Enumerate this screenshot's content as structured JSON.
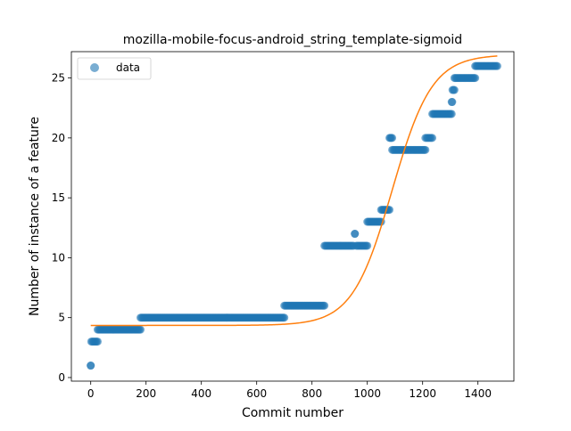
{
  "chart_data": {
    "type": "scatter",
    "title": "mozilla-mobile-focus-android_string_template-sigmoid",
    "xlabel": "Commit number",
    "ylabel": "Number of instance of a feature",
    "xlim": [
      -70,
      1530
    ],
    "ylim": [
      -0.3,
      27.2
    ],
    "xticks": [
      0,
      200,
      400,
      600,
      800,
      1000,
      1200,
      1400
    ],
    "yticks": [
      0,
      5,
      10,
      15,
      20,
      25
    ],
    "grid": false,
    "legend": {
      "position": "top-left",
      "entries": [
        "data"
      ]
    },
    "colors": {
      "data": "#1f77b4",
      "fit": "#ff7f0e"
    },
    "series": [
      {
        "name": "data",
        "kind": "scatter",
        "segments": [
          {
            "x_start": 0,
            "x_end": 0,
            "y": 1
          },
          {
            "x_start": 2,
            "x_end": 25,
            "y": 3
          },
          {
            "x_start": 25,
            "x_end": 180,
            "y": 4
          },
          {
            "x_start": 180,
            "x_end": 700,
            "y": 5
          },
          {
            "x_start": 700,
            "x_end": 845,
            "y": 6
          },
          {
            "x_start": 845,
            "x_end": 950,
            "y": 11
          },
          {
            "x_start": 955,
            "x_end": 955,
            "y": 12
          },
          {
            "x_start": 960,
            "x_end": 1000,
            "y": 11
          },
          {
            "x_start": 1000,
            "x_end": 1050,
            "y": 13
          },
          {
            "x_start": 1050,
            "x_end": 1080,
            "y": 14
          },
          {
            "x_start": 1080,
            "x_end": 1090,
            "y": 20
          },
          {
            "x_start": 1090,
            "x_end": 1210,
            "y": 19
          },
          {
            "x_start": 1210,
            "x_end": 1235,
            "y": 20
          },
          {
            "x_start": 1235,
            "x_end": 1305,
            "y": 22
          },
          {
            "x_start": 1305,
            "x_end": 1307,
            "y": 23
          },
          {
            "x_start": 1308,
            "x_end": 1315,
            "y": 24
          },
          {
            "x_start": 1315,
            "x_end": 1390,
            "y": 25
          },
          {
            "x_start": 1390,
            "x_end": 1470,
            "y": 26
          }
        ]
      },
      {
        "kind": "line",
        "model": "sigmoid",
        "params": {
          "base": 4.35,
          "amplitude": 22.6,
          "midpoint": 1090,
          "scale": 72
        },
        "x_range": [
          0,
          1470
        ]
      }
    ]
  }
}
